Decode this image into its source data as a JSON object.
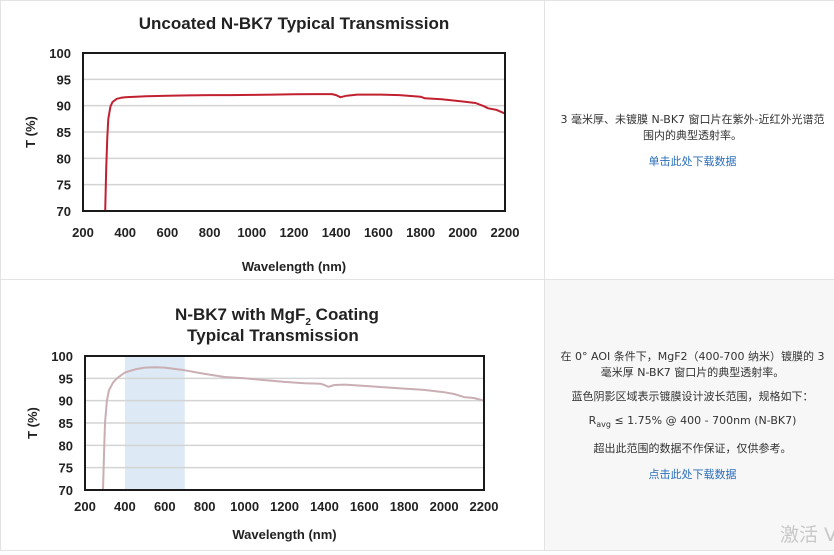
{
  "rows": [
    {
      "description": [
        "3 毫米厚、未镀膜 N-BK7 窗口片在紫外-近红外光谱范围内的典型透射率。"
      ],
      "link": "单击此处下载数据"
    },
    {
      "description": [
        "在 0° AOI 条件下，MgF2（400-700 纳米）镀膜的 3 毫米厚 N-BK7 窗口片的典型透射率。",
        "蓝色阴影区域表示镀膜设计波长范围，规格如下："
      ],
      "spec": {
        "r": "R",
        "sub": "avg",
        "rest": " ≤ 1.75% @ 400 - 700nm (N-BK7)"
      },
      "note": "超出此范围的数据不作保证，仅供参考。",
      "link": "点击此处下载数据"
    }
  ],
  "watermark": "激活 V",
  "colors": {
    "uncoated_line": "#c0202f",
    "coated_line": "#c9aeb3",
    "shade": "#dde9f5",
    "grid": "#d4d4d4",
    "link": "#2a6ebb"
  },
  "chart_data": [
    {
      "type": "line",
      "title": "Uncoated N-BK7 Typical Transmission",
      "title_lines": [
        "Uncoated N-BK7 Typical Transmission"
      ],
      "xlabel": "Wavelength (nm)",
      "ylabel": "T (%)",
      "xlim": [
        200,
        2200
      ],
      "ylim": [
        70,
        100
      ],
      "xticks": [
        200,
        400,
        600,
        800,
        1000,
        1200,
        1400,
        1600,
        1800,
        2000,
        2200
      ],
      "yticks": [
        70,
        75,
        80,
        85,
        90,
        95,
        100
      ],
      "grid": true,
      "series": [
        {
          "name": "Uncoated N-BK7",
          "x": [
            305,
            310,
            315,
            320,
            330,
            340,
            360,
            380,
            400,
            450,
            500,
            600,
            700,
            800,
            900,
            1000,
            1100,
            1200,
            1300,
            1380,
            1400,
            1420,
            1450,
            1500,
            1600,
            1700,
            1800,
            1820,
            1900,
            2000,
            2060,
            2100,
            2120,
            2160,
            2200
          ],
          "y": [
            70,
            78,
            84,
            87.5,
            89.8,
            90.7,
            91.3,
            91.5,
            91.6,
            91.7,
            91.8,
            91.9,
            91.95,
            92.0,
            92.0,
            92.05,
            92.1,
            92.15,
            92.2,
            92.2,
            92.0,
            91.6,
            91.9,
            92.1,
            92.1,
            92.0,
            91.7,
            91.4,
            91.2,
            90.8,
            90.5,
            89.9,
            89.5,
            89.2,
            88.5
          ]
        }
      ]
    },
    {
      "type": "line",
      "title": "N-BK7 with MgF2 Coating Typical Transmission",
      "title_lines": [
        "N-BK7 with MgF",
        "2",
        " Coating",
        "Typical Transmission"
      ],
      "xlabel": "Wavelength (nm)",
      "ylabel": "T (%)",
      "xlim": [
        200,
        2200
      ],
      "ylim": [
        70,
        100
      ],
      "xticks": [
        200,
        400,
        600,
        800,
        1000,
        1200,
        1400,
        1600,
        1800,
        2000,
        2200
      ],
      "yticks": [
        70,
        75,
        80,
        85,
        90,
        95,
        100
      ],
      "grid": true,
      "shaded_region": {
        "x": [
          400,
          700
        ],
        "label": "coating design wavelength range"
      },
      "series": [
        {
          "name": "MgF2 coated N-BK7",
          "x": [
            290,
            295,
            300,
            310,
            320,
            340,
            360,
            400,
            450,
            500,
            550,
            600,
            700,
            800,
            900,
            1000,
            1100,
            1200,
            1300,
            1380,
            1400,
            1420,
            1450,
            1500,
            1600,
            1700,
            1800,
            1900,
            2000,
            2050,
            2100,
            2150,
            2200
          ],
          "y": [
            70,
            78,
            85,
            90,
            92.3,
            94,
            95,
            96.3,
            97.0,
            97.4,
            97.5,
            97.4,
            96.8,
            96.0,
            95.3,
            95.0,
            94.6,
            94.2,
            93.9,
            93.8,
            93.5,
            93.1,
            93.5,
            93.6,
            93.3,
            93.0,
            92.7,
            92.4,
            91.9,
            91.5,
            90.8,
            90.6,
            90.0
          ]
        }
      ]
    }
  ]
}
